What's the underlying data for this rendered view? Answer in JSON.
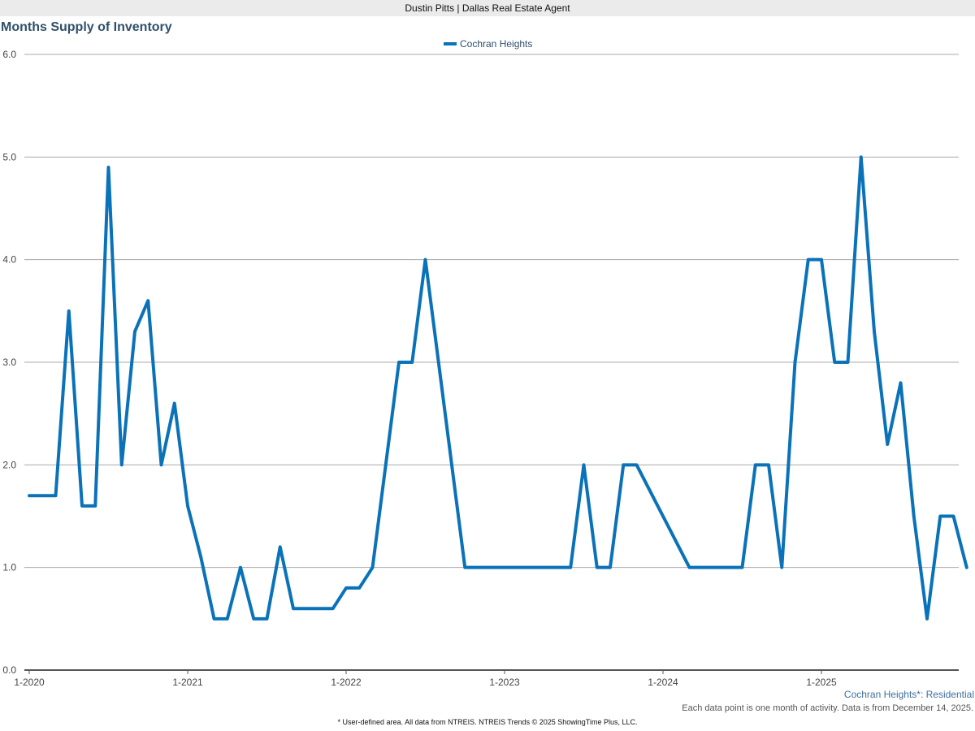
{
  "header": {
    "agent": "Dustin Pitts | Dallas Real Estate Agent"
  },
  "colors": {
    "series": "#0a72b8",
    "title": "#2e4f6b",
    "grid": "#aaaaaa",
    "axis": "#555555"
  },
  "chart_data": {
    "type": "line",
    "title": "Months Supply of Inventory",
    "xlabel": "",
    "ylabel": "",
    "ylim": [
      0,
      6
    ],
    "yticks": [
      "0.0",
      "1.0",
      "2.0",
      "3.0",
      "4.0",
      "5.0",
      "6.0"
    ],
    "xticks": [
      "1-2020",
      "1-2021",
      "1-2022",
      "1-2023",
      "1-2024",
      "1-2025"
    ],
    "grid": true,
    "legend": "top-center",
    "series": [
      {
        "name": "Cochran Heights",
        "x_start": "1-2020",
        "x_end": "12-2025",
        "values": [
          1.7,
          1.7,
          1.7,
          3.5,
          1.6,
          1.6,
          4.9,
          2.0,
          3.3,
          3.6,
          2.0,
          2.6,
          1.6,
          1.1,
          0.5,
          0.5,
          1.0,
          0.5,
          0.5,
          1.2,
          0.6,
          0.6,
          0.6,
          0.6,
          0.8,
          0.8,
          1.0,
          2.0,
          3.0,
          3.0,
          4.0,
          3.0,
          2.0,
          1.0,
          1.0,
          1.0,
          1.0,
          1.0,
          1.0,
          1.0,
          1.0,
          1.0,
          2.0,
          1.0,
          1.0,
          2.0,
          2.0,
          1.75,
          1.5,
          1.25,
          1.0,
          1.0,
          1.0,
          1.0,
          1.0,
          2.0,
          2.0,
          1.0,
          3.0,
          4.0,
          4.0,
          3.0,
          3.0,
          5.0,
          3.3,
          2.2,
          2.8,
          1.5,
          0.5,
          1.5,
          1.5,
          1.0
        ]
      }
    ]
  },
  "notes": {
    "area": "Cochran Heights*: Residential",
    "activity": "Each data point is one month of activity. Data is from December 14, 2025.",
    "footer": "* User-defined area. All data from NTREIS. NTREIS Trends © 2025 ShowingTime Plus, LLC."
  }
}
